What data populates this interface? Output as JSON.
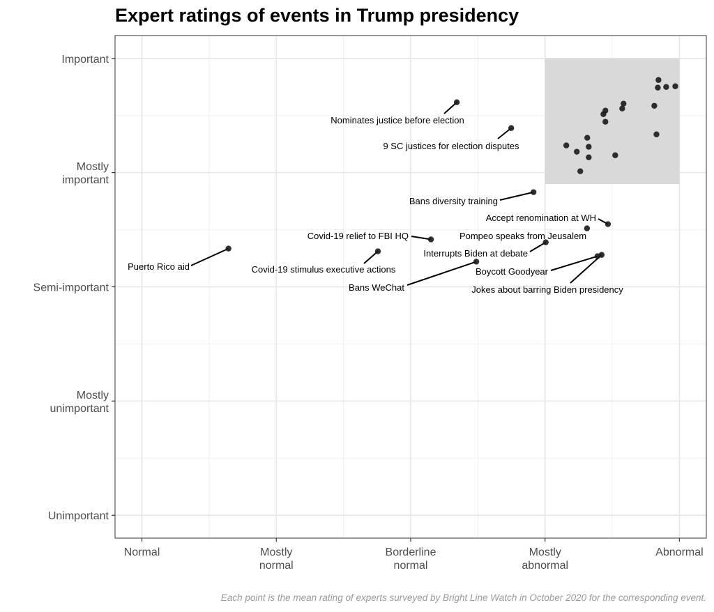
{
  "chart_data": {
    "type": "scatter",
    "title": "Expert ratings of events in Trump presidency",
    "caption": "Each point is the mean rating of experts surveyed by Bright Line Watch in October 2020 for the corresponding event.",
    "xlabel": "",
    "ylabel": "",
    "xlim": [
      0.8,
      5.2
    ],
    "ylim": [
      0.8,
      5.2
    ],
    "grid": true,
    "x_ticks": [
      {
        "value": 1,
        "label": [
          "Normal"
        ]
      },
      {
        "value": 2,
        "label": [
          "Mostly",
          "normal"
        ]
      },
      {
        "value": 3,
        "label": [
          "Borderline",
          "normal"
        ]
      },
      {
        "value": 4,
        "label": [
          "Mostly",
          "abnormal"
        ]
      },
      {
        "value": 5,
        "label": [
          "Abnormal"
        ]
      }
    ],
    "y_ticks": [
      {
        "value": 5,
        "label": [
          "Important"
        ]
      },
      {
        "value": 4,
        "label": [
          "Mostly",
          "important"
        ]
      },
      {
        "value": 3,
        "label": [
          "Semi-important"
        ]
      },
      {
        "value": 2,
        "label": [
          "Mostly",
          "unimportant"
        ]
      },
      {
        "value": 1,
        "label": [
          "Unimportant"
        ]
      }
    ],
    "highlight_region": {
      "x": [
        4,
        5
      ],
      "y": [
        3.9,
        5
      ],
      "color": "#d9d9d9"
    },
    "point_color": "#1a1a1a",
    "labeled_points": [
      {
        "label": "Puerto Rico aid",
        "x": 1.644,
        "y": 3.335
      },
      {
        "label": "Covid-19 stimulus executive actions",
        "x": 2.756,
        "y": 3.311
      },
      {
        "label": "Covid-19 relief to FBI HQ",
        "x": 3.151,
        "y": 3.415
      },
      {
        "label": "Nominates justice before election",
        "x": 3.343,
        "y": 4.616
      },
      {
        "label": "9 SC justices for election disputes",
        "x": 3.748,
        "y": 4.39
      },
      {
        "label": "Bans diversity training",
        "x": 3.914,
        "y": 3.829
      },
      {
        "label": "Bans WeChat",
        "x": 3.488,
        "y": 3.22
      },
      {
        "label": "Interrupts Biden at debate",
        "x": 4.005,
        "y": 3.39
      },
      {
        "label": "Pompeo speaks from Jeusalem",
        "x": 4.312,
        "y": 3.512
      },
      {
        "label": "Accept renomination at WH",
        "x": 4.468,
        "y": 3.549
      },
      {
        "label": "Boycott Goodyear",
        "x": 4.39,
        "y": 3.268
      },
      {
        "label": "Jokes about barring Biden presidency",
        "x": 4.421,
        "y": 3.28
      }
    ],
    "unlabeled_points": [
      {
        "x": 4.844,
        "y": 4.811
      },
      {
        "x": 4.839,
        "y": 4.744
      },
      {
        "x": 4.901,
        "y": 4.75
      },
      {
        "x": 4.969,
        "y": 4.756
      },
      {
        "x": 4.813,
        "y": 4.585
      },
      {
        "x": 4.584,
        "y": 4.604
      },
      {
        "x": 4.574,
        "y": 4.561
      },
      {
        "x": 4.449,
        "y": 4.543
      },
      {
        "x": 4.434,
        "y": 4.512
      },
      {
        "x": 4.449,
        "y": 4.445
      },
      {
        "x": 4.829,
        "y": 4.335
      },
      {
        "x": 4.314,
        "y": 4.305
      },
      {
        "x": 4.158,
        "y": 4.238
      },
      {
        "x": 4.325,
        "y": 4.226
      },
      {
        "x": 4.236,
        "y": 4.183
      },
      {
        "x": 4.325,
        "y": 4.134
      },
      {
        "x": 4.522,
        "y": 4.152
      },
      {
        "x": 4.262,
        "y": 4.012
      }
    ]
  }
}
